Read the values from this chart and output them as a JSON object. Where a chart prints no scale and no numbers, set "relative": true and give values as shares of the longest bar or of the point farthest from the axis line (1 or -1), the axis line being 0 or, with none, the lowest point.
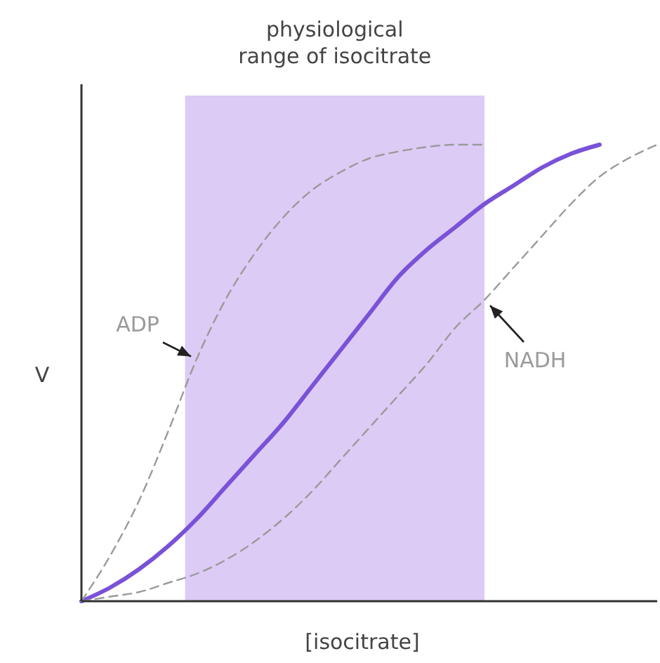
{
  "chart_data": {
    "type": "line",
    "relative": true,
    "xlabel": "[isocitrate]",
    "ylabel": "V",
    "annotations": [
      "physiological range of isocitrate"
    ],
    "categories": [
      null,
      null,
      null,
      null,
      null,
      null,
      null,
      null,
      null,
      null,
      null,
      null,
      null,
      null,
      null,
      null,
      null,
      null,
      null,
      null,
      null
    ],
    "series": [
      {
        "color": "#7a52d8",
        "line_style": "solid",
        "values": [
          0,
          0.03,
          0.07,
          0.12,
          0.18,
          0.25,
          0.32,
          0.39,
          0.47,
          0.55,
          0.63,
          0.71,
          0.77,
          0.82,
          0.87,
          0.91,
          0.95,
          0.98,
          1.0,
          null,
          null
        ]
      },
      {
        "name": "ADP",
        "color": "#9a9a9a",
        "line_style": "dashed",
        "values": [
          0,
          0.1,
          0.22,
          0.37,
          0.53,
          0.66,
          0.76,
          0.84,
          0.9,
          0.94,
          0.97,
          0.985,
          0.995,
          1.0,
          1.0,
          null,
          null,
          null,
          null,
          null,
          null
        ]
      },
      {
        "name": "NADH",
        "color": "#9a9a9a",
        "line_style": "dashed",
        "values": [
          0,
          0.01,
          0.02,
          0.04,
          0.06,
          0.09,
          0.13,
          0.18,
          0.24,
          0.31,
          0.38,
          0.45,
          0.52,
          0.6,
          0.66,
          0.73,
          0.8,
          0.87,
          0.93,
          0.97,
          1.0
        ]
      }
    ]
  }
}
